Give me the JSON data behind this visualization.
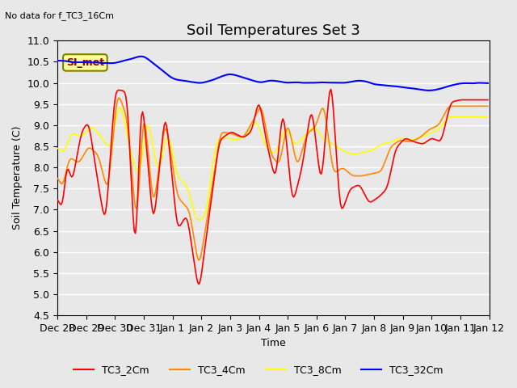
{
  "title": "Soil Temperatures Set 3",
  "top_left_text": "No data for f_TC3_16Cm",
  "ylabel": "Soil Temperature (C)",
  "xlabel": "Time",
  "ylim": [
    4.5,
    11.0
  ],
  "yticks": [
    4.5,
    5.0,
    5.5,
    6.0,
    6.5,
    7.0,
    7.5,
    8.0,
    8.5,
    9.0,
    9.5,
    10.0,
    10.5,
    11.0
  ],
  "legend_label_box": "SI_met",
  "color_2cm": "#ff0000",
  "color_4cm": "#ff8800",
  "color_8cm": "#ffff00",
  "color_32cm": "#0000ff",
  "background_color": "#e8e8e8",
  "grid_color": "#ffffff",
  "n_points": 360,
  "xlim": [
    0,
    360
  ],
  "xtick_positions": [
    0,
    24,
    48,
    72,
    96,
    120,
    144,
    168,
    192,
    216,
    240,
    264,
    288,
    312,
    336,
    360
  ],
  "xtick_labels": [
    "Dec 28",
    "Dec 29",
    "Dec 30",
    "Dec 31",
    "Jan 1",
    "Jan 2",
    "Jan 3",
    "Jan 4",
    "Jan 5",
    "Jan 6",
    "Jan 7",
    "Jan 8",
    "Jan 9",
    "Jan 10",
    "Jan 11",
    "Jan 12"
  ],
  "title_fontsize": 13,
  "legend_fontsize": 9,
  "axis_fontsize": 9
}
